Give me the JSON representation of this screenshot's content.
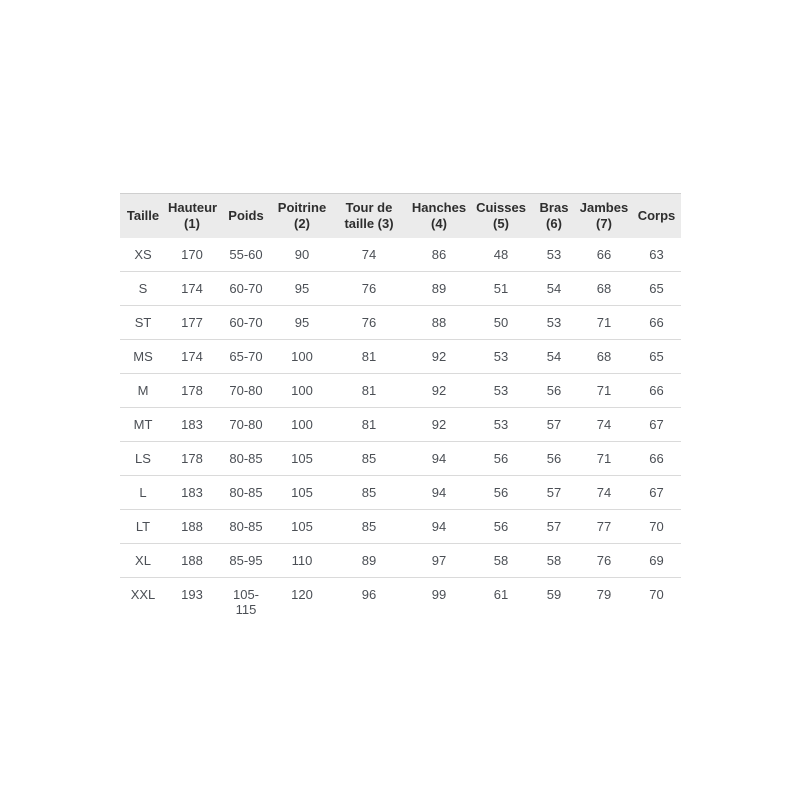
{
  "colors": {
    "header_bg": "#ebebeb",
    "header_text": "#2e2e2e",
    "body_text": "#4b4f55",
    "row_border": "#dadada",
    "table_top_border": "#cfcfcf",
    "page_bg": "#ffffff"
  },
  "table": {
    "columns": [
      {
        "label": "Taille",
        "lines": [
          "Taille"
        ]
      },
      {
        "label": "Hauteur (1)",
        "lines": [
          "Hauteur",
          "(1)"
        ]
      },
      {
        "label": "Poids",
        "lines": [
          "Poids"
        ]
      },
      {
        "label": "Poitrine (2)",
        "lines": [
          "Poitrine",
          "(2)"
        ]
      },
      {
        "label": "Tour de taille (3)",
        "lines": [
          "Tour de",
          "taille (3)"
        ]
      },
      {
        "label": "Hanches (4)",
        "lines": [
          "Hanches",
          "(4)"
        ]
      },
      {
        "label": "Cuisses (5)",
        "lines": [
          "Cuisses",
          "(5)"
        ]
      },
      {
        "label": "Bras (6)",
        "lines": [
          "Bras",
          "(6)"
        ]
      },
      {
        "label": "Jambes (7)",
        "lines": [
          "Jambes",
          "(7)"
        ]
      },
      {
        "label": "Corps",
        "lines": [
          "Corps"
        ]
      }
    ],
    "rows": [
      [
        "XS",
        "170",
        "55-60",
        "90",
        "74",
        "86",
        "48",
        "53",
        "66",
        "63"
      ],
      [
        "S",
        "174",
        "60-70",
        "95",
        "76",
        "89",
        "51",
        "54",
        "68",
        "65"
      ],
      [
        "ST",
        "177",
        "60-70",
        "95",
        "76",
        "88",
        "50",
        "53",
        "71",
        "66"
      ],
      [
        "MS",
        "174",
        "65-70",
        "100",
        "81",
        "92",
        "53",
        "54",
        "68",
        "65"
      ],
      [
        "M",
        "178",
        "70-80",
        "100",
        "81",
        "92",
        "53",
        "56",
        "71",
        "66"
      ],
      [
        "MT",
        "183",
        "70-80",
        "100",
        "81",
        "92",
        "53",
        "57",
        "74",
        "67"
      ],
      [
        "LS",
        "178",
        "80-85",
        "105",
        "85",
        "94",
        "56",
        "56",
        "71",
        "66"
      ],
      [
        "L",
        "183",
        "80-85",
        "105",
        "85",
        "94",
        "56",
        "57",
        "74",
        "67"
      ],
      [
        "LT",
        "188",
        "80-85",
        "105",
        "85",
        "94",
        "56",
        "57",
        "77",
        "70"
      ],
      [
        "XL",
        "188",
        "85-95",
        "110",
        "89",
        "97",
        "58",
        "58",
        "76",
        "69"
      ],
      [
        "XXL",
        "193",
        "105-115",
        "120",
        "96",
        "99",
        "61",
        "59",
        "79",
        "70"
      ]
    ]
  },
  "chart_data": {
    "type": "table",
    "columns": [
      "Taille",
      "Hauteur (1)",
      "Poids",
      "Poitrine (2)",
      "Tour de taille (3)",
      "Hanches (4)",
      "Cuisses (5)",
      "Bras (6)",
      "Jambes (7)",
      "Corps"
    ],
    "rows": [
      [
        "XS",
        "170",
        "55-60",
        "90",
        "74",
        "86",
        "48",
        "53",
        "66",
        "63"
      ],
      [
        "S",
        "174",
        "60-70",
        "95",
        "76",
        "89",
        "51",
        "54",
        "68",
        "65"
      ],
      [
        "ST",
        "177",
        "60-70",
        "95",
        "76",
        "88",
        "50",
        "53",
        "71",
        "66"
      ],
      [
        "MS",
        "174",
        "65-70",
        "100",
        "81",
        "92",
        "53",
        "54",
        "68",
        "65"
      ],
      [
        "M",
        "178",
        "70-80",
        "100",
        "81",
        "92",
        "53",
        "56",
        "71",
        "66"
      ],
      [
        "MT",
        "183",
        "70-80",
        "100",
        "81",
        "92",
        "53",
        "57",
        "74",
        "67"
      ],
      [
        "LS",
        "178",
        "80-85",
        "105",
        "85",
        "94",
        "56",
        "56",
        "71",
        "66"
      ],
      [
        "L",
        "183",
        "80-85",
        "105",
        "85",
        "94",
        "56",
        "57",
        "74",
        "67"
      ],
      [
        "LT",
        "188",
        "80-85",
        "105",
        "85",
        "94",
        "56",
        "57",
        "77",
        "70"
      ],
      [
        "XL",
        "188",
        "85-95",
        "110",
        "89",
        "97",
        "58",
        "58",
        "76",
        "69"
      ],
      [
        "XXL",
        "193",
        "105-115",
        "120",
        "96",
        "99",
        "61",
        "59",
        "79",
        "70"
      ]
    ]
  }
}
